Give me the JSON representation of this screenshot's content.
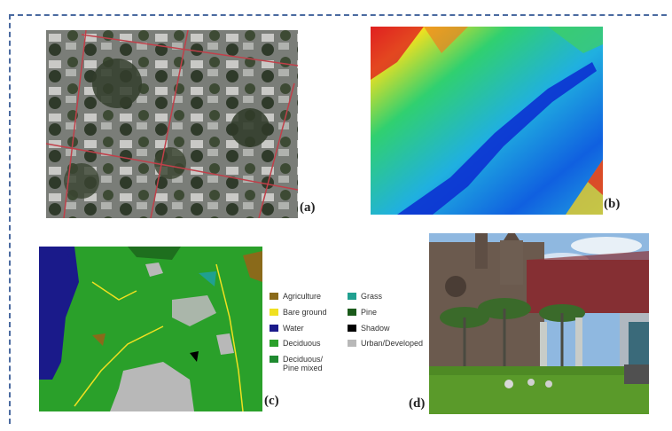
{
  "panels": {
    "a": {
      "label": "(a)"
    },
    "b": {
      "label": "(b)"
    },
    "c": {
      "label": "(c)"
    },
    "d": {
      "label": "(d)"
    }
  },
  "legend": {
    "items": [
      {
        "label": "Agriculture",
        "color": "#8a6a1a"
      },
      {
        "label": "Bare ground",
        "color": "#f0e020"
      },
      {
        "label": "Water",
        "color": "#1a1a8a"
      },
      {
        "label": "Deciduous",
        "color": "#2aa02a"
      },
      {
        "label": "Deciduous/\nPine mixed",
        "color": "#1f8a30"
      },
      {
        "label": "Grass",
        "color": "#20a090"
      },
      {
        "label": "Pine",
        "color": "#1a5a1a"
      },
      {
        "label": "Shadow",
        "color": "#000000"
      },
      {
        "label": "Urban/Developed",
        "color": "#b8b8b8"
      }
    ]
  },
  "colors": {
    "frame": "#4a6aa0"
  }
}
